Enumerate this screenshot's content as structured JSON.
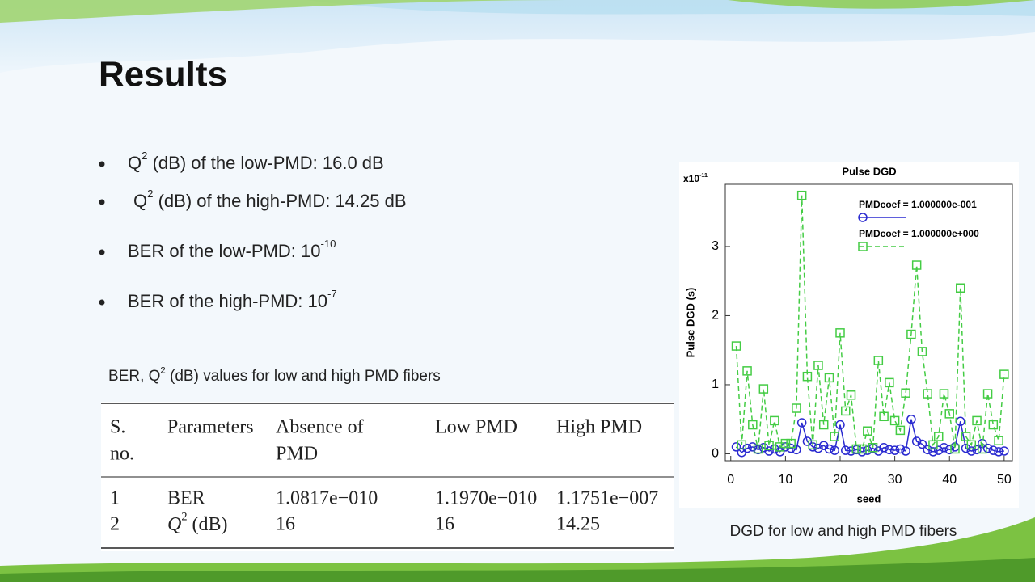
{
  "title": "Results",
  "bullets": [
    [
      {
        "text": "Q"
      },
      {
        "text": "2",
        "sup": true
      },
      {
        "text": " (dB) of the low-PMD: 16.0 dB"
      }
    ],
    [
      {
        "text": "Q"
      },
      {
        "text": "2",
        "sup": true
      },
      {
        "text": " (dB) of the high-PMD: 14.25 dB"
      }
    ],
    [
      {
        "text": "BER  of the low-PMD: 10"
      },
      {
        "text": "-10",
        "sup": true
      }
    ],
    [
      {
        "text": "BER  of the high-PMD: 10"
      },
      {
        "text": "-7",
        "sup": true
      }
    ]
  ],
  "table_caption": [
    {
      "text": "BER, Q"
    },
    {
      "text": "2",
      "sup": true
    },
    {
      "text": "  (dB) values for low and high PMD  fibers"
    }
  ],
  "table": {
    "header": [
      [
        "S.",
        "no."
      ],
      [
        "Parameters"
      ],
      [
        "Absence of",
        "PMD"
      ],
      [
        "Low PMD"
      ],
      [
        "High PMD"
      ]
    ],
    "rows": [
      [
        "1",
        "BER",
        "1.0817e−010",
        "1.1970e−010",
        "1.1751e−007"
      ],
      [
        "2",
        [
          {
            "text": "Q",
            "italic": true
          },
          {
            "text": "2",
            "sup": true
          },
          {
            "text": " (dB)"
          }
        ],
        16,
        16,
        14.25
      ]
    ]
  },
  "chart_caption": "DGD  for low and high PMD  fibers",
  "chart_data": {
    "type": "line",
    "title": "Pulse DGD",
    "y_multiplier": [
      {
        "text": "x10"
      },
      {
        "text": "-11",
        "sup": true
      }
    ],
    "y_label": "Pulse DGD (s)",
    "x_label": "seed",
    "x": [
      1,
      2,
      3,
      4,
      5,
      6,
      7,
      8,
      9,
      10,
      11,
      12,
      13,
      14,
      15,
      16,
      17,
      18,
      19,
      20,
      21,
      22,
      23,
      24,
      25,
      26,
      27,
      28,
      29,
      30,
      31,
      32,
      33,
      34,
      35,
      36,
      37,
      38,
      39,
      40,
      41,
      42,
      43,
      44,
      45,
      46,
      47,
      48,
      49,
      50
    ],
    "xlim": [
      -1,
      51.5
    ],
    "xticks": [
      0,
      10,
      20,
      30,
      40,
      50
    ],
    "ylim": [
      -0.1,
      3.9
    ],
    "yticks": [
      0,
      1,
      2,
      3
    ],
    "series": [
      {
        "name": "PMDcoef = 1.000000e-001",
        "color": "#2a2ad0",
        "marker": "circle",
        "dash": false,
        "values": [
          0.1,
          0.02,
          0.08,
          0.1,
          0.06,
          0.09,
          0.04,
          0.07,
          0.03,
          0.1,
          0.08,
          0.06,
          0.45,
          0.18,
          0.1,
          0.08,
          0.12,
          0.07,
          0.05,
          0.42,
          0.05,
          0.04,
          0.06,
          0.03,
          0.05,
          0.08,
          0.04,
          0.09,
          0.06,
          0.05,
          0.07,
          0.04,
          0.5,
          0.18,
          0.14,
          0.06,
          0.03,
          0.05,
          0.09,
          0.06,
          0.1,
          0.47,
          0.08,
          0.04,
          0.06,
          0.15,
          0.08,
          0.05,
          0.03,
          0.04
        ]
      },
      {
        "name": "PMDcoef = 1.000000e+000",
        "color": "#44cc44",
        "marker": "square",
        "dash": true,
        "values": [
          1.56,
          0.13,
          1.2,
          0.42,
          0.07,
          0.94,
          0.12,
          0.48,
          0.1,
          0.15,
          0.15,
          0.66,
          3.74,
          1.12,
          0.13,
          1.28,
          0.42,
          1.1,
          0.25,
          1.75,
          0.62,
          0.85,
          0.07,
          0.07,
          0.33,
          0.09,
          1.35,
          0.54,
          1.03,
          0.48,
          0.34,
          0.88,
          1.73,
          2.73,
          1.48,
          0.87,
          0.13,
          0.25,
          0.87,
          0.58,
          0.07,
          2.4,
          0.25,
          0.13,
          0.48,
          0.07,
          0.87,
          0.42,
          0.19,
          1.15
        ]
      }
    ]
  }
}
